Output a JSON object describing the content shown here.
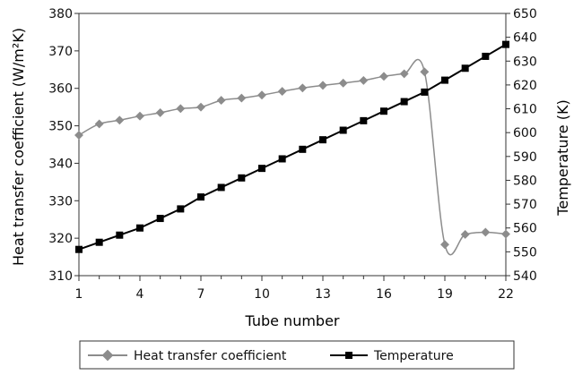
{
  "chart_data": {
    "type": "line",
    "x": [
      1,
      2,
      3,
      4,
      5,
      6,
      7,
      8,
      9,
      10,
      11,
      12,
      13,
      14,
      15,
      16,
      17,
      18,
      19,
      20,
      21,
      22
    ],
    "xlabel": "Tube number",
    "xticks": [
      1,
      4,
      7,
      10,
      13,
      16,
      19,
      22
    ],
    "xlim": [
      1,
      22
    ],
    "ylabel_left": "Heat transfer coefficient (W/m²K)",
    "ylim_left": [
      310,
      380
    ],
    "yticks_left": [
      310,
      320,
      330,
      340,
      350,
      360,
      370,
      380
    ],
    "ylabel_right": "Temperature (K)",
    "ylim_right": [
      540,
      650
    ],
    "yticks_right": [
      540,
      550,
      560,
      570,
      580,
      590,
      600,
      610,
      620,
      630,
      640,
      650
    ],
    "grid": false,
    "legend_position": "bottom",
    "series": [
      {
        "name": "Heat transfer coefficient",
        "axis": "left",
        "color": "#8c8c8c",
        "marker": "diamond",
        "values": [
          347.5,
          350.5,
          351.5,
          352.6,
          353.5,
          354.6,
          355.0,
          356.8,
          357.4,
          358.2,
          359.2,
          360.1,
          360.8,
          361.4,
          362.1,
          363.2,
          363.9,
          364.4,
          318.3,
          321.0,
          321.6,
          321.1
        ]
      },
      {
        "name": "Temperature",
        "axis": "right",
        "color": "#000000",
        "marker": "square",
        "values": [
          551,
          554,
          557,
          560,
          564,
          568,
          573,
          577,
          581,
          585,
          589,
          593,
          597,
          601,
          605,
          609,
          613,
          617,
          622,
          627,
          632,
          637
        ]
      }
    ]
  }
}
